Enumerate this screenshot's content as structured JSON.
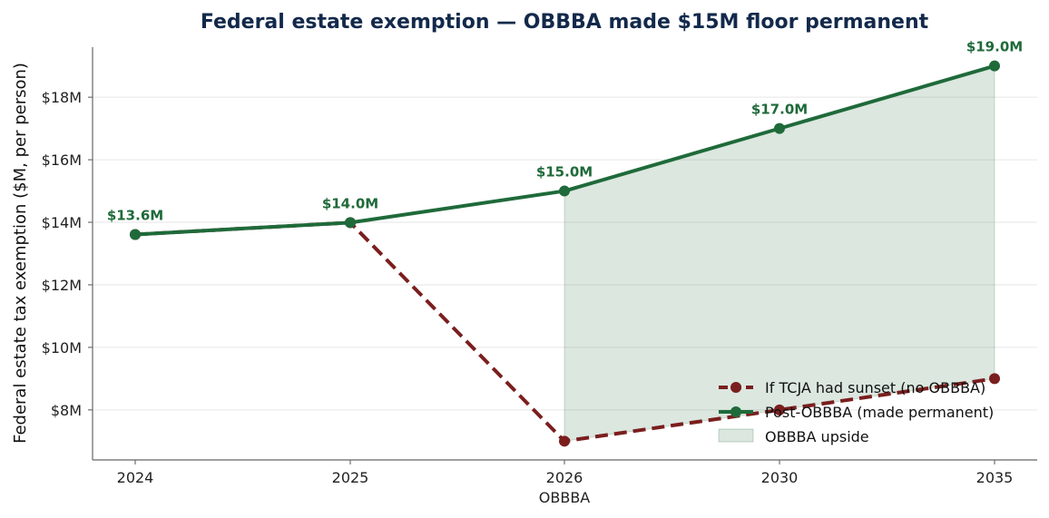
{
  "chart_data": {
    "type": "line",
    "title": "Federal estate exemption — OBBBA made $15M floor permanent",
    "xlabel": "",
    "ylabel": "Federal estate tax exemption ($M, per person)",
    "categories": [
      "2024",
      "2025",
      "2026",
      "2030",
      "2035"
    ],
    "x_sublabels": [
      "",
      "",
      "OBBBA",
      "",
      ""
    ],
    "ylim": [
      6.4,
      19.6
    ],
    "yticks": [
      8,
      10,
      12,
      14,
      16,
      18
    ],
    "ytick_labels": [
      "$8M",
      "$10M",
      "$12M",
      "$14M",
      "$16M",
      "$18M"
    ],
    "grid": "horizontal",
    "legend_position": "lower-right",
    "series": [
      {
        "name": "If TCJA had sunset (no OBBBA)",
        "values": [
          13.61,
          13.99,
          7.0,
          8.0,
          9.0
        ],
        "color": "#7b1e1e",
        "style": "dashed"
      },
      {
        "name": "Post-OBBBA (made permanent)",
        "values": [
          13.61,
          13.99,
          15.0,
          17.0,
          19.0
        ],
        "color": "#1f6a3a",
        "style": "solid",
        "data_labels": [
          "$13.6M",
          "$14.0M",
          "$15.0M",
          "$17.0M",
          "$19.0M"
        ]
      }
    ],
    "shaded_area": {
      "name": "OBBBA upside",
      "from_category": "2026",
      "to_category": "2035",
      "color": "#1f6a3a"
    }
  }
}
